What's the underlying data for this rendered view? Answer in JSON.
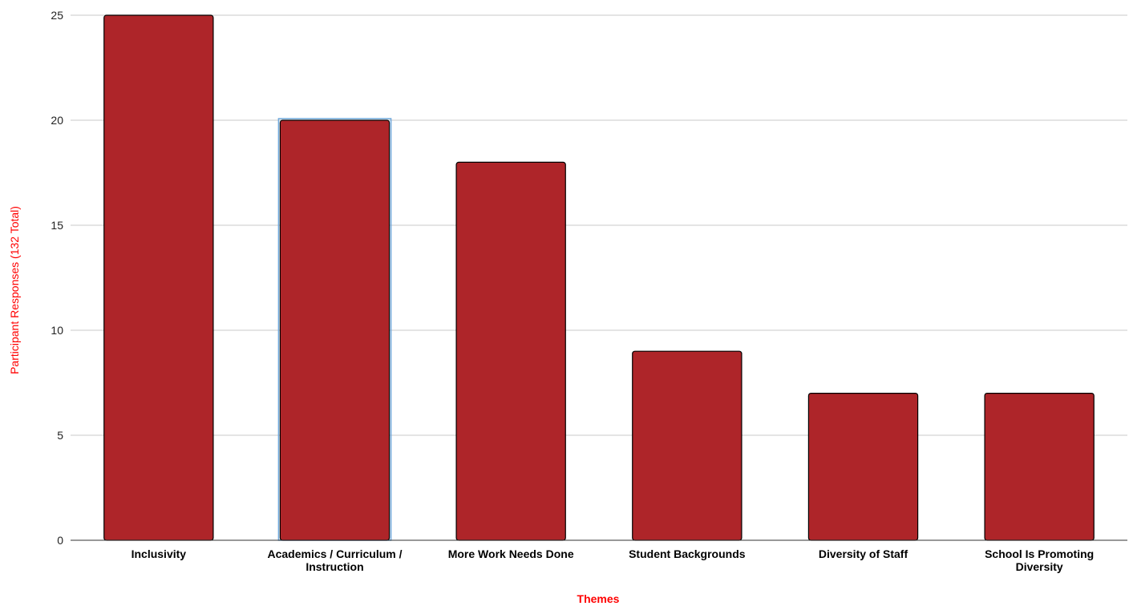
{
  "chart_data": {
    "type": "bar",
    "title": "",
    "xlabel": "Themes",
    "ylabel": "Participant Responses (132 Total)",
    "categories": [
      "Inclusivity",
      "Academics / Curriculum / Instruction",
      "More Work Needs Done",
      "Student Backgrounds",
      "Diversity of Staff",
      "School Is Promoting Diversity"
    ],
    "category_lines": [
      [
        "Inclusivity"
      ],
      [
        "Academics / Curriculum /",
        "Instruction"
      ],
      [
        "More Work Needs Done"
      ],
      [
        "Student Backgrounds"
      ],
      [
        "Diversity of Staff"
      ],
      [
        "School Is Promoting",
        "Diversity"
      ]
    ],
    "values": [
      25,
      20,
      18,
      9,
      7,
      7
    ],
    "ylim": [
      0,
      25
    ],
    "yticks": [
      "0",
      "5",
      "10",
      "15",
      "20",
      "25"
    ],
    "grid": true,
    "legend": "none",
    "selected_index": 1,
    "colors": {
      "bar": "#ae2529",
      "bar_stroke": "#000000",
      "axis_title": "#ff0000",
      "gridline": "#c8c8c8",
      "selection": "#6fa8dc"
    }
  }
}
